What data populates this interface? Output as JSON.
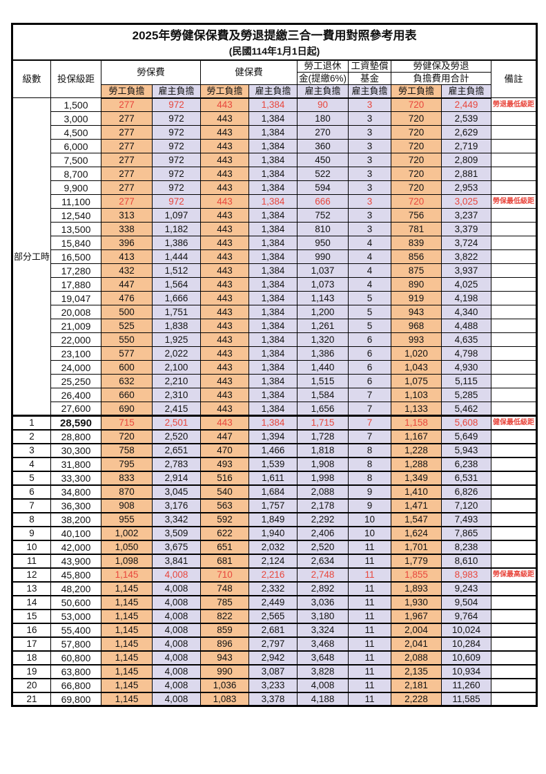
{
  "title": "2025年勞健保保費及勞退提繳三合一費用對照參考用表",
  "subtitle": "(民國114年1月1日起)",
  "colors": {
    "employee_bg": "#f7c394",
    "employer_bg": "#dcd9ed",
    "highlight_red": "#e8463c"
  },
  "table": {
    "part_time_label": "部分工時",
    "columns": {
      "level": "級數",
      "bracket": "投保級距",
      "labor_insurance": "勞保費",
      "health_insurance": "健保費",
      "pension_line1": "勞工退休",
      "pension_line2": "金(提繳6%)",
      "wage_fund_line1": "工資墊償",
      "wage_fund_line2": "基金",
      "total_line1": "勞健保及勞退",
      "total_line2": "負擔費用合計",
      "remark": "備註",
      "employee_share": "勞工負擔",
      "employer_share": "雇主負擔"
    },
    "rows": [
      {
        "level": "",
        "bracket": "1,500",
        "li_emp": "277",
        "li_er": "972",
        "hi_emp": "443",
        "hi_er": "1,384",
        "pension": "90",
        "fund": "3",
        "sum_emp": "720",
        "sum_er": "2,449",
        "remark": "勞退最低級距",
        "red": true
      },
      {
        "level": "",
        "bracket": "3,000",
        "li_emp": "277",
        "li_er": "972",
        "hi_emp": "443",
        "hi_er": "1,384",
        "pension": "180",
        "fund": "3",
        "sum_emp": "720",
        "sum_er": "2,539",
        "remark": "",
        "red": false
      },
      {
        "level": "",
        "bracket": "4,500",
        "li_emp": "277",
        "li_er": "972",
        "hi_emp": "443",
        "hi_er": "1,384",
        "pension": "270",
        "fund": "3",
        "sum_emp": "720",
        "sum_er": "2,629",
        "remark": "",
        "red": false
      },
      {
        "level": "",
        "bracket": "6,000",
        "li_emp": "277",
        "li_er": "972",
        "hi_emp": "443",
        "hi_er": "1,384",
        "pension": "360",
        "fund": "3",
        "sum_emp": "720",
        "sum_er": "2,719",
        "remark": "",
        "red": false
      },
      {
        "level": "",
        "bracket": "7,500",
        "li_emp": "277",
        "li_er": "972",
        "hi_emp": "443",
        "hi_er": "1,384",
        "pension": "450",
        "fund": "3",
        "sum_emp": "720",
        "sum_er": "2,809",
        "remark": "",
        "red": false
      },
      {
        "level": "",
        "bracket": "8,700",
        "li_emp": "277",
        "li_er": "972",
        "hi_emp": "443",
        "hi_er": "1,384",
        "pension": "522",
        "fund": "3",
        "sum_emp": "720",
        "sum_er": "2,881",
        "remark": "",
        "red": false
      },
      {
        "level": "",
        "bracket": "9,900",
        "li_emp": "277",
        "li_er": "972",
        "hi_emp": "443",
        "hi_er": "1,384",
        "pension": "594",
        "fund": "3",
        "sum_emp": "720",
        "sum_er": "2,953",
        "remark": "",
        "red": false
      },
      {
        "level": "",
        "bracket": "11,100",
        "li_emp": "277",
        "li_er": "972",
        "hi_emp": "443",
        "hi_er": "1,384",
        "pension": "666",
        "fund": "3",
        "sum_emp": "720",
        "sum_er": "3,025",
        "remark": "勞保最低級距",
        "red": true
      },
      {
        "level": "",
        "bracket": "12,540",
        "li_emp": "313",
        "li_er": "1,097",
        "hi_emp": "443",
        "hi_er": "1,384",
        "pension": "752",
        "fund": "3",
        "sum_emp": "756",
        "sum_er": "3,237",
        "remark": "",
        "red": false
      },
      {
        "level": "",
        "bracket": "13,500",
        "li_emp": "338",
        "li_er": "1,182",
        "hi_emp": "443",
        "hi_er": "1,384",
        "pension": "810",
        "fund": "3",
        "sum_emp": "781",
        "sum_er": "3,379",
        "remark": "",
        "red": false
      },
      {
        "level": "",
        "bracket": "15,840",
        "li_emp": "396",
        "li_er": "1,386",
        "hi_emp": "443",
        "hi_er": "1,384",
        "pension": "950",
        "fund": "4",
        "sum_emp": "839",
        "sum_er": "3,724",
        "remark": "",
        "red": false
      },
      {
        "level": "",
        "bracket": "16,500",
        "li_emp": "413",
        "li_er": "1,444",
        "hi_emp": "443",
        "hi_er": "1,384",
        "pension": "990",
        "fund": "4",
        "sum_emp": "856",
        "sum_er": "3,822",
        "remark": "",
        "red": false
      },
      {
        "level": "",
        "bracket": "17,280",
        "li_emp": "432",
        "li_er": "1,512",
        "hi_emp": "443",
        "hi_er": "1,384",
        "pension": "1,037",
        "fund": "4",
        "sum_emp": "875",
        "sum_er": "3,937",
        "remark": "",
        "red": false
      },
      {
        "level": "",
        "bracket": "17,880",
        "li_emp": "447",
        "li_er": "1,564",
        "hi_emp": "443",
        "hi_er": "1,384",
        "pension": "1,073",
        "fund": "4",
        "sum_emp": "890",
        "sum_er": "4,025",
        "remark": "",
        "red": false
      },
      {
        "level": "",
        "bracket": "19,047",
        "li_emp": "476",
        "li_er": "1,666",
        "hi_emp": "443",
        "hi_er": "1,384",
        "pension": "1,143",
        "fund": "5",
        "sum_emp": "919",
        "sum_er": "4,198",
        "remark": "",
        "red": false
      },
      {
        "level": "",
        "bracket": "20,008",
        "li_emp": "500",
        "li_er": "1,751",
        "hi_emp": "443",
        "hi_er": "1,384",
        "pension": "1,200",
        "fund": "5",
        "sum_emp": "943",
        "sum_er": "4,340",
        "remark": "",
        "red": false
      },
      {
        "level": "",
        "bracket": "21,009",
        "li_emp": "525",
        "li_er": "1,838",
        "hi_emp": "443",
        "hi_er": "1,384",
        "pension": "1,261",
        "fund": "5",
        "sum_emp": "968",
        "sum_er": "4,488",
        "remark": "",
        "red": false
      },
      {
        "level": "",
        "bracket": "22,000",
        "li_emp": "550",
        "li_er": "1,925",
        "hi_emp": "443",
        "hi_er": "1,384",
        "pension": "1,320",
        "fund": "6",
        "sum_emp": "993",
        "sum_er": "4,635",
        "remark": "",
        "red": false
      },
      {
        "level": "",
        "bracket": "23,100",
        "li_emp": "577",
        "li_er": "2,022",
        "hi_emp": "443",
        "hi_er": "1,384",
        "pension": "1,386",
        "fund": "6",
        "sum_emp": "1,020",
        "sum_er": "4,798",
        "remark": "",
        "red": false
      },
      {
        "level": "",
        "bracket": "24,000",
        "li_emp": "600",
        "li_er": "2,100",
        "hi_emp": "443",
        "hi_er": "1,384",
        "pension": "1,440",
        "fund": "6",
        "sum_emp": "1,043",
        "sum_er": "4,930",
        "remark": "",
        "red": false
      },
      {
        "level": "",
        "bracket": "25,250",
        "li_emp": "632",
        "li_er": "2,210",
        "hi_emp": "443",
        "hi_er": "1,384",
        "pension": "1,515",
        "fund": "6",
        "sum_emp": "1,075",
        "sum_er": "5,115",
        "remark": "",
        "red": false
      },
      {
        "level": "",
        "bracket": "26,400",
        "li_emp": "660",
        "li_er": "2,310",
        "hi_emp": "443",
        "hi_er": "1,384",
        "pension": "1,584",
        "fund": "7",
        "sum_emp": "1,103",
        "sum_er": "5,285",
        "remark": "",
        "red": false
      },
      {
        "level": "",
        "bracket": "27,600",
        "li_emp": "690",
        "li_er": "2,415",
        "hi_emp": "443",
        "hi_er": "1,384",
        "pension": "1,656",
        "fund": "7",
        "sum_emp": "1,133",
        "sum_er": "5,462",
        "remark": "",
        "red": false
      },
      {
        "level": "1",
        "bracket": "28,590",
        "li_emp": "715",
        "li_er": "2,501",
        "hi_emp": "443",
        "hi_er": "1,384",
        "pension": "1,715",
        "fund": "7",
        "sum_emp": "1,158",
        "sum_er": "5,608",
        "remark": "健保最低級距",
        "red": true
      },
      {
        "level": "2",
        "bracket": "28,800",
        "li_emp": "720",
        "li_er": "2,520",
        "hi_emp": "447",
        "hi_er": "1,394",
        "pension": "1,728",
        "fund": "7",
        "sum_emp": "1,167",
        "sum_er": "5,649",
        "remark": "",
        "red": false
      },
      {
        "level": "3",
        "bracket": "30,300",
        "li_emp": "758",
        "li_er": "2,651",
        "hi_emp": "470",
        "hi_er": "1,466",
        "pension": "1,818",
        "fund": "8",
        "sum_emp": "1,228",
        "sum_er": "5,943",
        "remark": "",
        "red": false
      },
      {
        "level": "4",
        "bracket": "31,800",
        "li_emp": "795",
        "li_er": "2,783",
        "hi_emp": "493",
        "hi_er": "1,539",
        "pension": "1,908",
        "fund": "8",
        "sum_emp": "1,288",
        "sum_er": "6,238",
        "remark": "",
        "red": false
      },
      {
        "level": "5",
        "bracket": "33,300",
        "li_emp": "833",
        "li_er": "2,914",
        "hi_emp": "516",
        "hi_er": "1,611",
        "pension": "1,998",
        "fund": "8",
        "sum_emp": "1,349",
        "sum_er": "6,531",
        "remark": "",
        "red": false
      },
      {
        "level": "6",
        "bracket": "34,800",
        "li_emp": "870",
        "li_er": "3,045",
        "hi_emp": "540",
        "hi_er": "1,684",
        "pension": "2,088",
        "fund": "9",
        "sum_emp": "1,410",
        "sum_er": "6,826",
        "remark": "",
        "red": false
      },
      {
        "level": "7",
        "bracket": "36,300",
        "li_emp": "908",
        "li_er": "3,176",
        "hi_emp": "563",
        "hi_er": "1,757",
        "pension": "2,178",
        "fund": "9",
        "sum_emp": "1,471",
        "sum_er": "7,120",
        "remark": "",
        "red": false
      },
      {
        "level": "8",
        "bracket": "38,200",
        "li_emp": "955",
        "li_er": "3,342",
        "hi_emp": "592",
        "hi_er": "1,849",
        "pension": "2,292",
        "fund": "10",
        "sum_emp": "1,547",
        "sum_er": "7,493",
        "remark": "",
        "red": false
      },
      {
        "level": "9",
        "bracket": "40,100",
        "li_emp": "1,002",
        "li_er": "3,509",
        "hi_emp": "622",
        "hi_er": "1,940",
        "pension": "2,406",
        "fund": "10",
        "sum_emp": "1,624",
        "sum_er": "7,865",
        "remark": "",
        "red": false
      },
      {
        "level": "10",
        "bracket": "42,000",
        "li_emp": "1,050",
        "li_er": "3,675",
        "hi_emp": "651",
        "hi_er": "2,032",
        "pension": "2,520",
        "fund": "11",
        "sum_emp": "1,701",
        "sum_er": "8,238",
        "remark": "",
        "red": false
      },
      {
        "level": "11",
        "bracket": "43,900",
        "li_emp": "1,098",
        "li_er": "3,841",
        "hi_emp": "681",
        "hi_er": "2,124",
        "pension": "2,634",
        "fund": "11",
        "sum_emp": "1,779",
        "sum_er": "8,610",
        "remark": "",
        "red": false
      },
      {
        "level": "12",
        "bracket": "45,800",
        "li_emp": "1,145",
        "li_er": "4,008",
        "hi_emp": "710",
        "hi_er": "2,216",
        "pension": "2,748",
        "fund": "11",
        "sum_emp": "1,855",
        "sum_er": "8,983",
        "remark": "勞保最高級距",
        "red": true
      },
      {
        "level": "13",
        "bracket": "48,200",
        "li_emp": "1,145",
        "li_er": "4,008",
        "hi_emp": "748",
        "hi_er": "2,332",
        "pension": "2,892",
        "fund": "11",
        "sum_emp": "1,893",
        "sum_er": "9,243",
        "remark": "",
        "red": false
      },
      {
        "level": "14",
        "bracket": "50,600",
        "li_emp": "1,145",
        "li_er": "4,008",
        "hi_emp": "785",
        "hi_er": "2,449",
        "pension": "3,036",
        "fund": "11",
        "sum_emp": "1,930",
        "sum_er": "9,504",
        "remark": "",
        "red": false
      },
      {
        "level": "15",
        "bracket": "53,000",
        "li_emp": "1,145",
        "li_er": "4,008",
        "hi_emp": "822",
        "hi_er": "2,565",
        "pension": "3,180",
        "fund": "11",
        "sum_emp": "1,967",
        "sum_er": "9,764",
        "remark": "",
        "red": false
      },
      {
        "level": "16",
        "bracket": "55,400",
        "li_emp": "1,145",
        "li_er": "4,008",
        "hi_emp": "859",
        "hi_er": "2,681",
        "pension": "3,324",
        "fund": "11",
        "sum_emp": "2,004",
        "sum_er": "10,024",
        "remark": "",
        "red": false
      },
      {
        "level": "17",
        "bracket": "57,800",
        "li_emp": "1,145",
        "li_er": "4,008",
        "hi_emp": "896",
        "hi_er": "2,797",
        "pension": "3,468",
        "fund": "11",
        "sum_emp": "2,041",
        "sum_er": "10,284",
        "remark": "",
        "red": false
      },
      {
        "level": "18",
        "bracket": "60,800",
        "li_emp": "1,145",
        "li_er": "4,008",
        "hi_emp": "943",
        "hi_er": "2,942",
        "pension": "3,648",
        "fund": "11",
        "sum_emp": "2,088",
        "sum_er": "10,609",
        "remark": "",
        "red": false
      },
      {
        "level": "19",
        "bracket": "63,800",
        "li_emp": "1,145",
        "li_er": "4,008",
        "hi_emp": "990",
        "hi_er": "3,087",
        "pension": "3,828",
        "fund": "11",
        "sum_emp": "2,135",
        "sum_er": "10,934",
        "remark": "",
        "red": false
      },
      {
        "level": "20",
        "bracket": "66,800",
        "li_emp": "1,145",
        "li_er": "4,008",
        "hi_emp": "1,036",
        "hi_er": "3,233",
        "pension": "4,008",
        "fund": "11",
        "sum_emp": "2,181",
        "sum_er": "11,260",
        "remark": "",
        "red": false
      },
      {
        "level": "21",
        "bracket": "69,800",
        "li_emp": "1,145",
        "li_er": "4,008",
        "hi_emp": "1,083",
        "hi_er": "3,378",
        "pension": "4,188",
        "fund": "11",
        "sum_emp": "2,228",
        "sum_er": "11,585",
        "remark": "",
        "red": false
      }
    ]
  }
}
